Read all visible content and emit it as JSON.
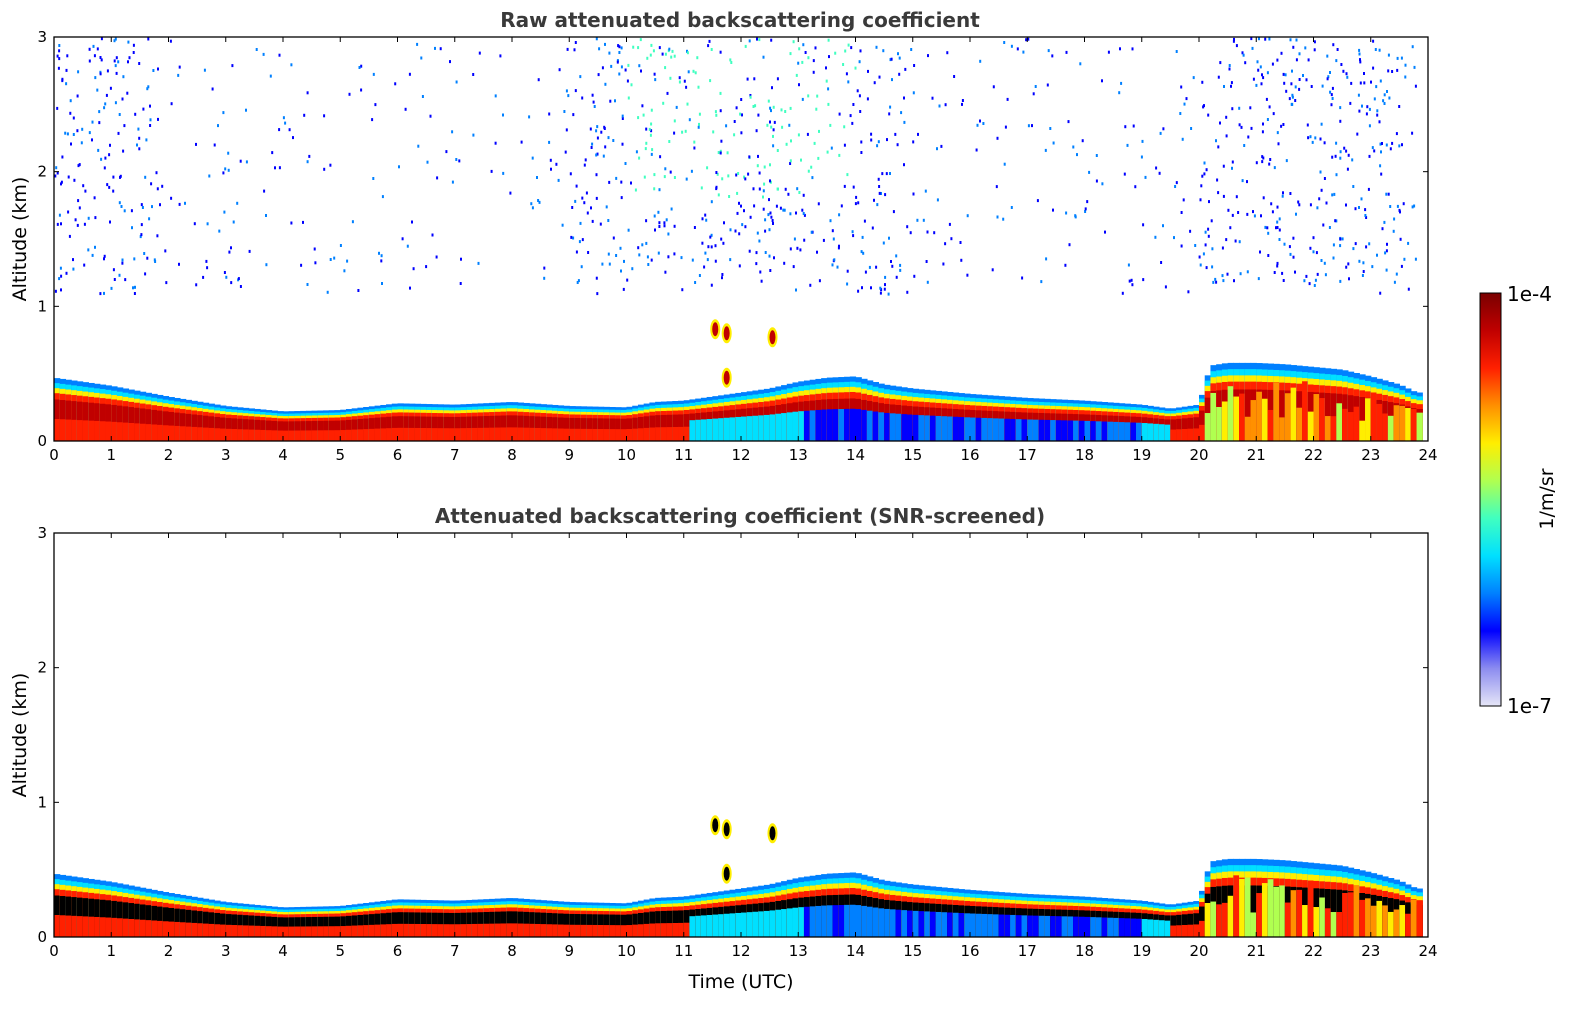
{
  "chart_data": [
    {
      "type": "heatmap",
      "title": "Raw attenuated backscattering coefficient",
      "xlabel": "",
      "ylabel": "Altitude (km)",
      "xlim": [
        0,
        24
      ],
      "ylim": [
        0,
        3
      ],
      "xticks": [
        "0",
        "1",
        "2",
        "3",
        "4",
        "5",
        "6",
        "7",
        "8",
        "9",
        "10",
        "11",
        "12",
        "13",
        "14",
        "15",
        "16",
        "17",
        "18",
        "19",
        "20",
        "21",
        "22",
        "23",
        "24"
      ],
      "yticks": [
        "0",
        "1",
        "2",
        "3"
      ],
      "screened": false
    },
    {
      "type": "heatmap",
      "title": "Attenuated backscattering coefficient (SNR-screened)",
      "xlabel": "Time (UTC)",
      "ylabel": "Altitude (km)",
      "xlim": [
        0,
        24
      ],
      "ylim": [
        0,
        3
      ],
      "xticks": [
        "0",
        "1",
        "2",
        "3",
        "4",
        "5",
        "6",
        "7",
        "8",
        "9",
        "10",
        "11",
        "12",
        "13",
        "14",
        "15",
        "16",
        "17",
        "18",
        "19",
        "20",
        "21",
        "22",
        "23",
        "24"
      ],
      "yticks": [
        "0",
        "1",
        "2",
        "3"
      ],
      "screened": true
    }
  ],
  "boundary_layer_top_km": {
    "time": [
      0,
      1,
      2,
      3,
      4,
      5,
      6,
      7,
      8,
      9,
      10,
      10.5,
      11,
      11.5,
      12,
      12.5,
      13,
      13.5,
      14,
      14.5,
      15,
      16,
      17,
      18,
      19,
      19.5,
      20,
      20.2,
      20.5,
      21,
      21.5,
      22,
      22.5,
      23,
      23.5,
      23.8
    ],
    "altitude": [
      0.47,
      0.41,
      0.33,
      0.26,
      0.22,
      0.23,
      0.28,
      0.27,
      0.29,
      0.26,
      0.25,
      0.29,
      0.3,
      0.33,
      0.36,
      0.39,
      0.44,
      0.47,
      0.48,
      0.42,
      0.39,
      0.35,
      0.32,
      0.3,
      0.27,
      0.24,
      0.27,
      0.56,
      0.58,
      0.58,
      0.57,
      0.55,
      0.53,
      0.48,
      0.42,
      0.36
    ]
  },
  "elevated_aerosol_layers": [
    {
      "time": 11.55,
      "altitude_km": 0.83
    },
    {
      "time": 11.75,
      "altitude_km": 0.8
    },
    {
      "time": 12.55,
      "altitude_km": 0.77
    },
    {
      "time": 11.75,
      "altitude_km": 0.47
    }
  ],
  "colorbar": {
    "label": "1/m/sr",
    "max_label": "1e-4",
    "min_label": "1e-7",
    "colors": [
      "#e6e6f7",
      "#8c8cf0",
      "#0000ff",
      "#0080ff",
      "#00e0ff",
      "#40ffc0",
      "#b0ff50",
      "#ffee00",
      "#ff9000",
      "#ff2000",
      "#c00000",
      "#7a0000"
    ],
    "screened_high_color": "#000000"
  }
}
